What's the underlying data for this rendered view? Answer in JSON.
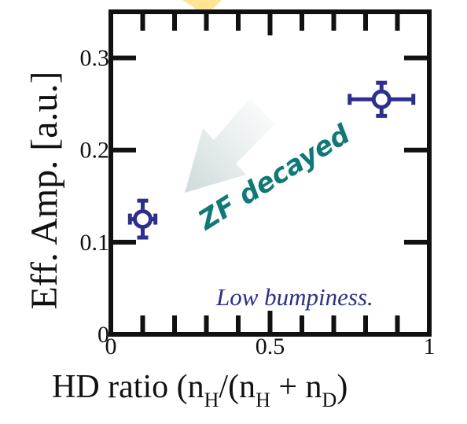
{
  "chart_data": {
    "type": "scatter",
    "title": "",
    "xlabel": "HD ratio (n",
    "xlabel_parts": {
      "prefix": "HD ratio (n",
      "sub1": "H",
      "mid1": "/(n",
      "sub2": "H",
      "mid2": " + n",
      "sub3": "D",
      "suffix": ")"
    },
    "ylabel": "Eff. Amp. [a.u.]",
    "xlim": [
      0,
      1
    ],
    "ylim": [
      0,
      0.35
    ],
    "xticks": [
      {
        "value": 0,
        "label": "0"
      },
      {
        "value": 0.5,
        "label": "0.5"
      },
      {
        "value": 1,
        "label": "1"
      }
    ],
    "yticks": [
      {
        "value": 0,
        "label": "0"
      },
      {
        "value": 0.1,
        "label": "0.1"
      },
      {
        "value": 0.2,
        "label": "0.2"
      },
      {
        "value": 0.3,
        "label": "0.3"
      }
    ],
    "series": [
      {
        "color": "#2b2f8f",
        "points": [
          {
            "x": 0.1,
            "y": 0.125,
            "xerr": 0.04,
            "yerr": 0.02
          },
          {
            "x": 0.85,
            "y": 0.255,
            "xerr": 0.1,
            "yerr": 0.018
          }
        ]
      }
    ],
    "annotations": {
      "arrow_text": "ZF decayed",
      "arrow_text_color": "#0e7a78",
      "bottom_text": "Low bumpiness."
    },
    "grid": false
  }
}
